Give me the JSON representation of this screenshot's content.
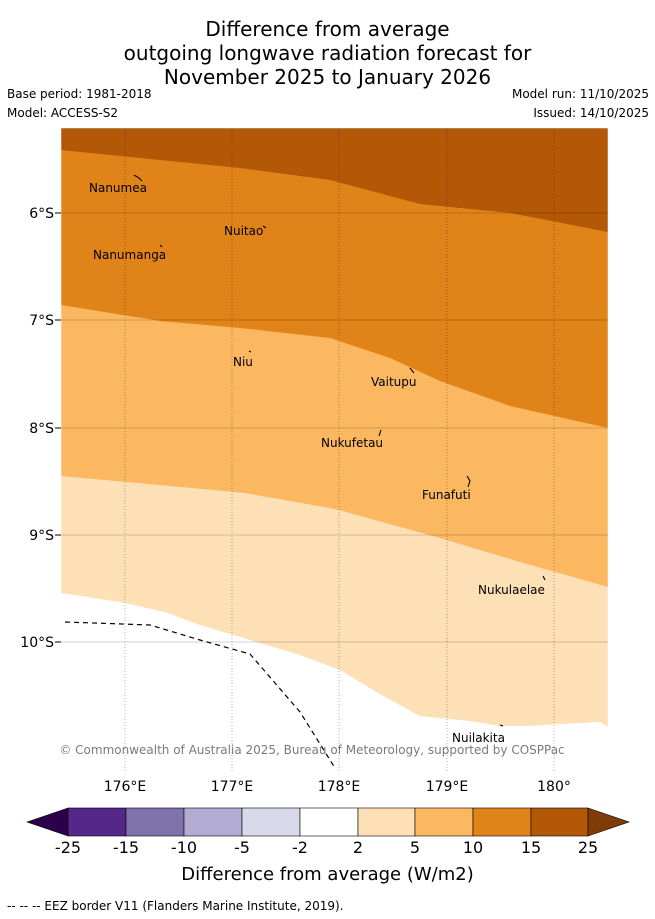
{
  "title": {
    "line1": "Difference from average",
    "line2": "outgoing longwave radiation forecast for",
    "line3": "November 2025 to January 2026"
  },
  "meta": {
    "base_period": "Base period: 1981-2018",
    "model": "Model: ACCESS-S2",
    "model_run": "Model run: 11/10/2025",
    "issued": "Issued: 14/10/2025"
  },
  "map": {
    "lon_labels": [
      "176°E",
      "177°E",
      "178°E",
      "179°E",
      "180°"
    ],
    "lat_labels": [
      "6°S",
      "7°S",
      "8°S",
      "9°S",
      "10°S"
    ],
    "places": [
      "Nanumea",
      "Nuitao",
      "Nanumanga",
      "Niu",
      "Vaitupu",
      "Nukufetau",
      "Funafuti",
      "Nukulaelae",
      "Nuilakita"
    ],
    "copyright": "© Commonwealth of Australia 2025, Bureau of Meteorology, supported by COSPPac"
  },
  "colors": {
    "band_2_5": "#fde0b6",
    "band_5_10": "#fbb861",
    "band_10_15": "#e08419",
    "band_15_25": "#b35806",
    "neutral": "#ffffff",
    "neg_2_5": "#d8daeb",
    "neg_5_10": "#b2abd2",
    "neg_10_15": "#8073ac",
    "neg_15_25": "#542788",
    "below_25": "#2d004b",
    "above_25": "#7f3b08"
  },
  "colorbar": {
    "ticks": [
      "-25",
      "-15",
      "-10",
      "-5",
      "-2",
      "2",
      "5",
      "10",
      "15",
      "25"
    ],
    "title": "Difference from average (W/m2)"
  },
  "legend": {
    "eez": "--  --  -- EEZ border V11 (Flanders Marine Institute, 2019)."
  }
}
